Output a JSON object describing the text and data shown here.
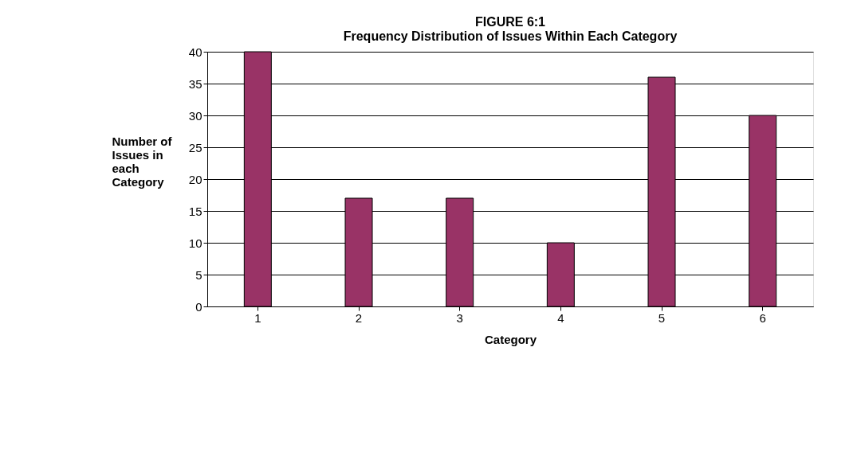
{
  "chart_data": {
    "type": "bar",
    "title": [
      "FIGURE 6:1",
      "Frequency Distribution of Issues Within Each Category"
    ],
    "xlabel": "Category",
    "ylabel": "Number of Issues in each Category",
    "categories": [
      "1",
      "2",
      "3",
      "4",
      "5",
      "6"
    ],
    "values": [
      40,
      17,
      17,
      10,
      36,
      30
    ],
    "color": "#993366",
    "ylim": [
      0,
      40
    ],
    "yticks": [
      0,
      5,
      10,
      15,
      20,
      25,
      30,
      35,
      40
    ],
    "grid": "y"
  }
}
